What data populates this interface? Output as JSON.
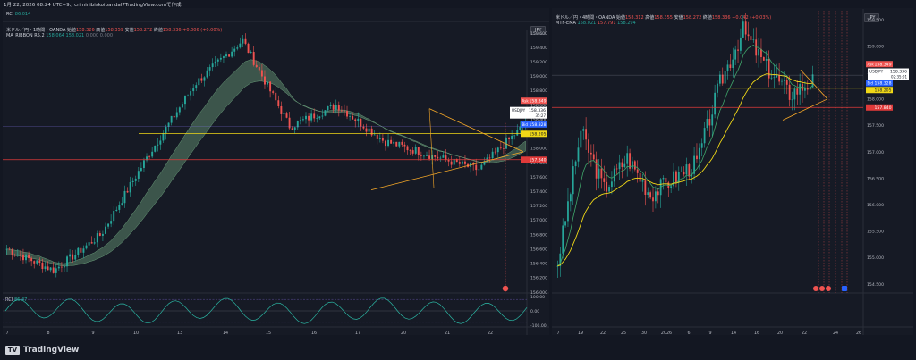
{
  "meta": {
    "top_line": "1月 22, 2026 08:24 UTC+9、criminibiskoipandal7TradingView.comで作成"
  },
  "brand": {
    "name": "TradingView"
  },
  "colors": {
    "bull": "#26a69a",
    "bear": "#ef5350",
    "yellow": "#f0d817",
    "orange": "#f7a928",
    "red_line": "#e03a3a",
    "ribbon": "#6a9e7a",
    "rci": "#2bb6a3",
    "violet": "#8c7fff",
    "gray": "#787b86"
  },
  "left": {
    "rci_top": {
      "label": "RCI",
      "value": "86.014"
    },
    "header": {
      "symbol": "米ドル／円・1時間・OANDA",
      "o_label": "始値",
      "o": "158.326",
      "h_label": "高値",
      "h": "158.359",
      "l_label": "安値",
      "l": "158.272",
      "c_label": "終値",
      "c": "158.336",
      "chg": "+0.006 (+0.00%)"
    },
    "ribbon_line": {
      "label": "MA_RIBBON R5.2",
      "v1": "158.064",
      "v2": "158.021",
      "v3": "0.000",
      "v4": "0.000"
    },
    "currency": "JPY",
    "tags": {
      "ask": {
        "label": "Ask",
        "value": "158.349"
      },
      "sym": {
        "label": "USDJPY",
        "value": "158.336",
        "sub": "35:27"
      },
      "bid": {
        "label": "Bid",
        "value": "158.328"
      },
      "y": "158.205",
      "r": "157.840"
    },
    "rci_pane": {
      "label": "RCI",
      "value": "86.47",
      "ticks": [
        "100.00",
        "0.00",
        "-100.00"
      ]
    },
    "x_labels": [
      "7",
      "8",
      "9",
      "10",
      "13",
      "14",
      "15",
      "16",
      "17",
      "20",
      "21",
      "22"
    ],
    "y_labels": [
      "159.600",
      "159.400",
      "159.200",
      "159.000",
      "158.800",
      "158.600",
      "158.400",
      "158.200",
      "158.000",
      "157.800",
      "157.600",
      "157.400",
      "157.200",
      "157.000",
      "156.800",
      "156.600",
      "156.400",
      "156.200",
      "156.000"
    ]
  },
  "right": {
    "header": {
      "symbol": "米ドル／円・4時間・OANDA",
      "o_label": "始値",
      "o": "158.312",
      "h_label": "高値",
      "h": "158.355",
      "l_label": "安値",
      "l": "158.272",
      "c_label": "終値",
      "c": "158.336",
      "chg": "+0.042 (+0.03%)"
    },
    "ema_line": {
      "label": "MTF-EMA",
      "v1": "158.021",
      "v2": "157.791",
      "v3": "158.294"
    },
    "currency": "JPY",
    "tags": {
      "ask": {
        "label": "Ask",
        "value": "158.349"
      },
      "sym": {
        "label": "USDJPY",
        "value": "158.336",
        "sub": "02:35:01"
      },
      "bid": {
        "label": "Bid",
        "value": "158.328"
      },
      "y": "158.205",
      "r": "157.840"
    },
    "x_labels": [
      "7",
      "19",
      "22",
      "25",
      "30",
      "2026",
      "6",
      "9",
      "14",
      "16",
      "20",
      "22",
      "24",
      "26"
    ],
    "y_labels": [
      "159.500",
      "159.000",
      "158.500",
      "158.000",
      "157.500",
      "157.000",
      "156.500",
      "156.000",
      "155.500",
      "155.000",
      "154.500"
    ]
  },
  "chart_data": [
    {
      "type": "candlestick",
      "title": "米ドル／円・1時間・OANDA",
      "x": [
        "7",
        "8",
        "9",
        "10",
        "13",
        "14",
        "15",
        "16",
        "17",
        "20",
        "21",
        "22"
      ],
      "ylim": [
        156.0,
        159.6
      ],
      "series": [
        {
          "name": "close",
          "values": [
            156.6,
            156.3,
            156.8,
            157.9,
            158.9,
            159.5,
            158.3,
            158.6,
            158.1,
            157.9,
            157.7,
            158.34
          ]
        }
      ],
      "levels": [
        158.205,
        157.84
      ],
      "indicator": {
        "name": "RCI",
        "value": 86.47,
        "ylim": [
          -100,
          100
        ]
      }
    },
    {
      "type": "candlestick",
      "title": "米ドル／円・4時間・OANDA",
      "x": [
        "7",
        "19",
        "22",
        "25",
        "30",
        "2026",
        "6",
        "9",
        "14",
        "16",
        "20",
        "22"
      ],
      "ylim": [
        154.5,
        159.5
      ],
      "series": [
        {
          "name": "close",
          "values": [
            154.9,
            157.4,
            156.3,
            156.9,
            156.2,
            156.5,
            156.8,
            158.3,
            159.3,
            158.6,
            158.1,
            158.34
          ]
        }
      ],
      "levels": [
        158.205,
        157.84
      ]
    }
  ]
}
